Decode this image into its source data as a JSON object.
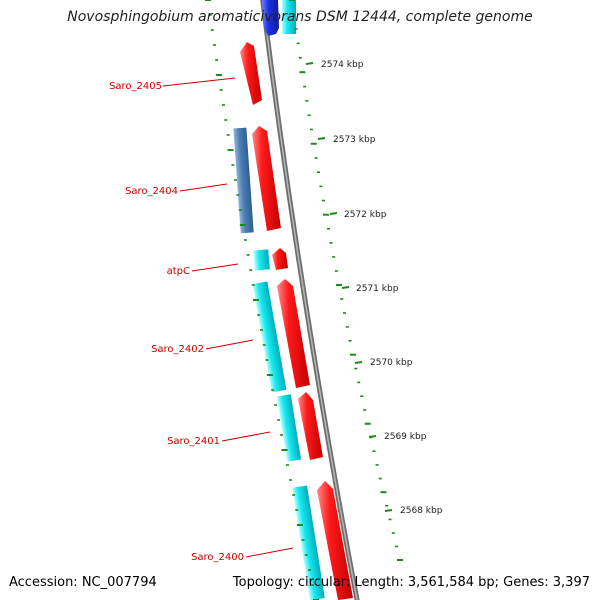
{
  "title": "Novosphingobium aromaticivorans DSM 12444, complete genome",
  "accession": "Accession: NC_007794",
  "summary": "Topology: circular; Length: 3,561,584 bp; Genes: 3,397",
  "colors": {
    "backbone": "#8c8c8c",
    "forward_cds": "#ff0000",
    "reverse_cds": "#00e5f0",
    "other_feature": "#4a7fb5",
    "blue_feature": "#1a2fe0",
    "tick": "#1c8a1c",
    "label": "#cc0000"
  },
  "scale_labels": [
    "2574 kbp",
    "2573 kbp",
    "2572 kbp",
    "2571 kbp",
    "2570 kbp",
    "2569 kbp",
    "2568 kbp"
  ],
  "gene_labels": [
    "Saro_2405",
    "Saro_2404",
    "atpC",
    "Saro_2402",
    "Saro_2401",
    "Saro_2400"
  ]
}
